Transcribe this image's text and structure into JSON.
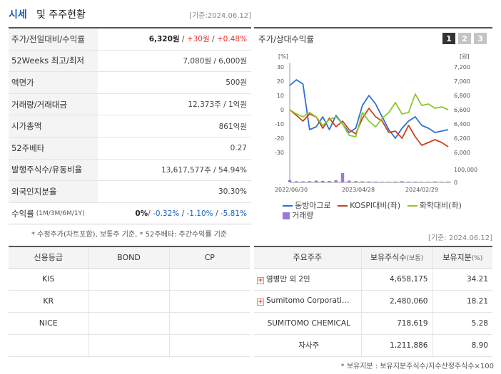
{
  "header": {
    "title_main": "시세",
    "title_rest": "및 주주현황",
    "date": "[기준:2024.06.12]"
  },
  "stock_rows": [
    {
      "label": "주가/전일대비/수익률",
      "price": "6,320원",
      "sep1": " / ",
      "change": "+30원",
      "sep2": " / ",
      "rate": "+0.48%"
    },
    {
      "label": "52Weeks 최고/최저",
      "value": "7,080원 / 6,000원"
    },
    {
      "label": "액면가",
      "value": "500원"
    },
    {
      "label": "거래량/거래대금",
      "value": "12,373주 / 1억원"
    },
    {
      "label": "시가총액",
      "value": "861억원"
    },
    {
      "label": "52주베타",
      "value": "0.27"
    },
    {
      "label": "발행주식수/유동비율",
      "value": "13,617,577주 / 54.94%"
    },
    {
      "label": "외국인지분율",
      "value": "30.30%"
    },
    {
      "label": "수익률",
      "label_small": "(1M/3M/6M/1Y)",
      "r1": "0%",
      "sep": "/ ",
      "r2": "-0.32%",
      "r3": "-1.10%",
      "r4": "-5.81%"
    }
  ],
  "note1": "* 수정주가(차트포함), 보통주 기준, * 52주베타: 주간수익률 기준",
  "chart_panel": {
    "title": "주가/상대수익률",
    "tabs": [
      "1",
      "2",
      "3"
    ]
  },
  "chart_data": {
    "type": "line",
    "left_unit": "[%]",
    "right_unit": "[원]",
    "left_ticks": [
      "30",
      "20",
      "10",
      "0",
      "-10",
      "-20",
      "-30"
    ],
    "right_ticks": [
      "7,200",
      "7,000",
      "6,800",
      "6,600",
      "6,400",
      "6,200",
      "6,000"
    ],
    "volume_ticks": [
      "100,000",
      "0"
    ],
    "x_ticks": [
      "2022/06/30",
      "2023/04/28",
      "2024/02/29"
    ],
    "left_range": [
      -30,
      30
    ],
    "volume_range": [
      0,
      100000
    ],
    "series": [
      {
        "name": "동방아그로",
        "color": "#2f6fd6",
        "values": [
          17,
          21,
          18,
          -14,
          -12,
          -5,
          -14,
          -4,
          -10,
          -16,
          -13,
          3,
          10,
          4,
          -5,
          -14,
          -20,
          -13,
          -8,
          -5,
          -11,
          -13,
          -16,
          -15,
          -14
        ]
      },
      {
        "name": "KOSPI대비(좌)",
        "color": "#c9431b",
        "values": [
          0,
          -4,
          -8,
          -3,
          -5,
          -13,
          -6,
          -12,
          -8,
          -14,
          -17,
          -6,
          1,
          -5,
          -8,
          -16,
          -15,
          -20,
          -11,
          -19,
          -25,
          -23,
          -21,
          -23,
          -26
        ]
      },
      {
        "name": "화학대비(좌)",
        "color": "#8ec62a",
        "values": [
          0,
          -3,
          -5,
          -2,
          -5,
          -11,
          -7,
          -5,
          -10,
          -18,
          -19,
          -2,
          -8,
          -12,
          -6,
          -2,
          5,
          -3,
          -2,
          11,
          3,
          4,
          1,
          2,
          0
        ]
      }
    ],
    "volume": {
      "name": "거래량",
      "color": "#9a7ad6",
      "values": [
        18000,
        9000,
        8000,
        10000,
        14000,
        12000,
        11000,
        16000,
        72000,
        14000,
        10000,
        8000,
        7000,
        6000,
        5000,
        5000,
        6000,
        9000,
        6000,
        6000,
        5000,
        5000,
        7000,
        5000,
        6000
      ]
    }
  },
  "date2": "[기준: 2024.06.12]",
  "grade_table": {
    "headers": [
      "신용등급",
      "BOND",
      "CP"
    ],
    "rows": [
      {
        "agency": "KIS",
        "bond": "",
        "cp": ""
      },
      {
        "agency": "KR",
        "bond": "",
        "cp": ""
      },
      {
        "agency": "NICE",
        "bond": "",
        "cp": ""
      },
      {
        "agency": "",
        "bond": "",
        "cp": ""
      }
    ]
  },
  "holder_table": {
    "headers": {
      "holder": "주요주주",
      "shares": "보유주식수",
      "shares_unit": "(보통)",
      "ratio": "보유지분",
      "ratio_unit": "(%)"
    },
    "rows": [
      {
        "name": "염병만 외 2인",
        "shares": "4,658,175",
        "ratio": "34.21",
        "expand": "+"
      },
      {
        "name": "Sumitomo Corporation...",
        "shares": "2,480,060",
        "ratio": "18.21",
        "expand": "+"
      },
      {
        "name": "SUMITOMO CHEMICAL",
        "shares": "718,619",
        "ratio": "5.28",
        "expand": ""
      },
      {
        "name": "자사주",
        "shares": "1,211,886",
        "ratio": "8.90",
        "expand": ""
      }
    ]
  },
  "note2": "* 보유지분 : 보유지분주식수/지수산정주식수×100"
}
